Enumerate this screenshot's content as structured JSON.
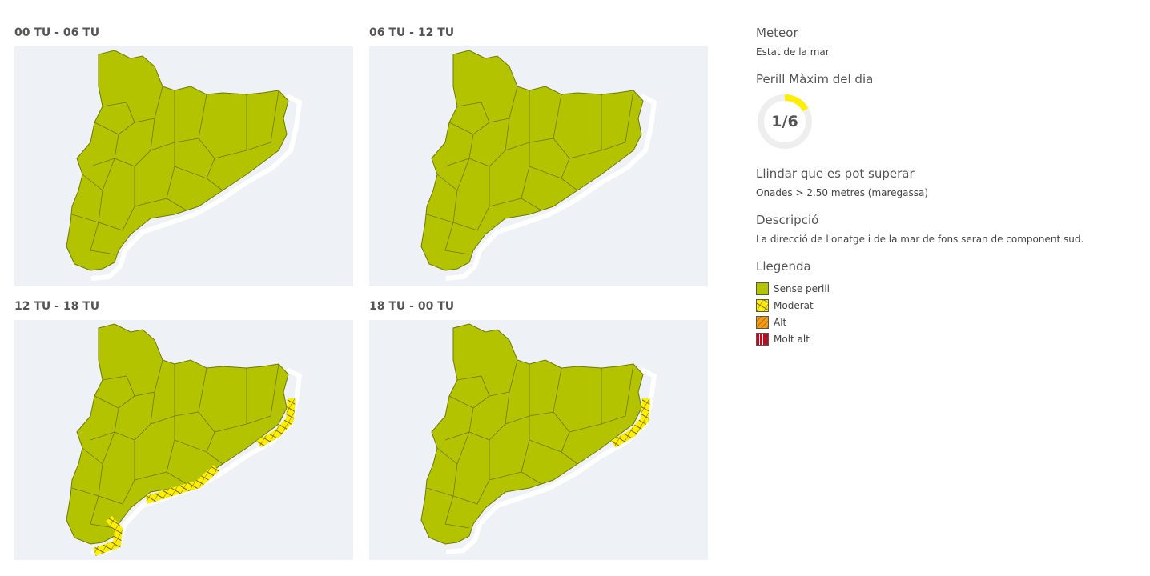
{
  "panels": [
    {
      "title": "00 TU - 06 TU"
    },
    {
      "title": "06 TU - 12 TU"
    },
    {
      "title": "12 TU - 18 TU"
    },
    {
      "title": "18 TU - 00 TU"
    }
  ],
  "info": {
    "meteor_heading": "Meteor",
    "meteor": "Estat de la mar",
    "max_heading": "Perill Màxim del dia",
    "max": "1/6",
    "threshold_heading": "Llindar que es pot superar",
    "threshold": "Onades > 2.50 metres (maregassa)",
    "description_heading": "Descripció",
    "description": "La direcció de l'onatge i de la mar de fons seran de component sud.",
    "legend_heading": "Llegenda",
    "legend": [
      "Sense perill",
      "Moderat",
      "Alt",
      "Molt alt"
    ]
  }
}
